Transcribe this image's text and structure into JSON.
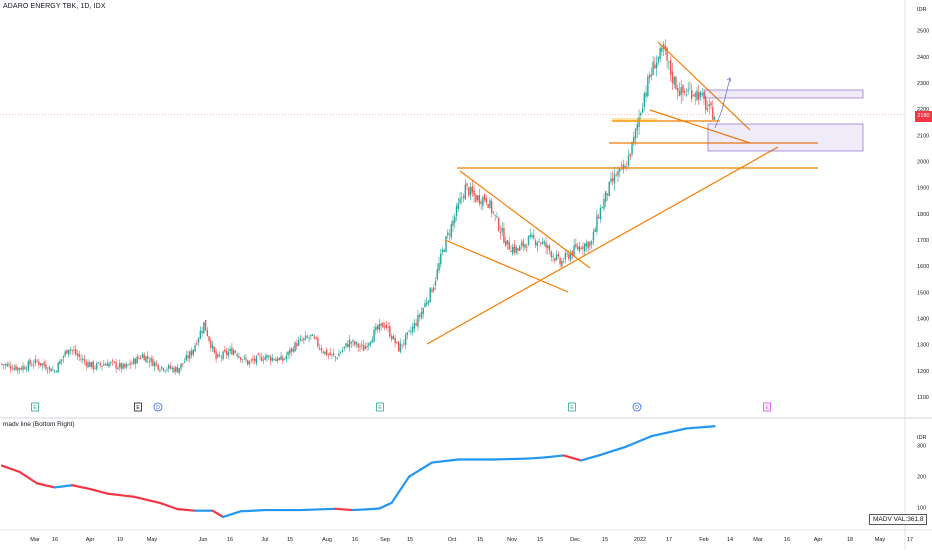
{
  "header": {
    "symbol_title": "ADARO ENERGY TBK, 1D, IDX"
  },
  "indicator": {
    "title": "madv line (Bottom Right)",
    "value_label": "MADV VAL:361.8"
  },
  "colors": {
    "up": "#26a69a",
    "down": "#ef5350",
    "pattern": "#f57c00",
    "madv_up": "#2196f3",
    "madv_down": "#f23645",
    "zone": "#7e57c2"
  },
  "last_price": {
    "label": "2180",
    "value": 2180
  },
  "chart_data": [
    {
      "type": "candlestick",
      "title": "ADARO ENERGY TBK, 1D, IDX",
      "currency_label": "IDR",
      "ylim": [
        1050,
        2560
      ],
      "y_ticks": [
        1100,
        1200,
        1300,
        1400,
        1500,
        1600,
        1700,
        1800,
        1900,
        2000,
        2100,
        2200,
        2300,
        2400,
        2500
      ],
      "x_ticks": [
        "Mar",
        "16",
        "Apr",
        "19",
        "May",
        "Jun",
        "16",
        "Jul",
        "15",
        "Aug",
        "16",
        "Sep",
        "15",
        "Oct",
        "15",
        "Nov",
        "15",
        "Dec",
        "15",
        "2022",
        "17",
        "Feb",
        "14",
        "Mar",
        "16",
        "Apr",
        "18",
        "May",
        "17"
      ],
      "close_path": [
        [
          0,
          1225
        ],
        [
          10,
          1210
        ],
        [
          20,
          1235
        ],
        [
          30,
          1200
        ],
        [
          38,
          1290
        ],
        [
          45,
          1245
        ],
        [
          52,
          1215
        ],
        [
          60,
          1230
        ],
        [
          70,
          1210
        ],
        [
          80,
          1260
        ],
        [
          90,
          1215
        ],
        [
          100,
          1205
        ],
        [
          108,
          1270
        ],
        [
          115,
          1380
        ],
        [
          122,
          1245
        ],
        [
          132,
          1280
        ],
        [
          140,
          1230
        ],
        [
          150,
          1255
        ],
        [
          160,
          1240
        ],
        [
          168,
          1305
        ],
        [
          176,
          1330
        ],
        [
          184,
          1270
        ],
        [
          190,
          1250
        ],
        [
          198,
          1310
        ],
        [
          206,
          1285
        ],
        [
          212,
          1345
        ],
        [
          218,
          1380
        ],
        [
          226,
          1285
        ],
        [
          232,
          1340
        ],
        [
          238,
          1410
        ],
        [
          246,
          1530
        ],
        [
          252,
          1680
        ],
        [
          258,
          1790
        ],
        [
          264,
          1900
        ],
        [
          270,
          1860
        ],
        [
          276,
          1860
        ],
        [
          282,
          1770
        ],
        [
          288,
          1680
        ],
        [
          294,
          1660
        ],
        [
          300,
          1700
        ],
        [
          306,
          1700
        ],
        [
          312,
          1660
        ],
        [
          318,
          1610
        ],
        [
          324,
          1650
        ],
        [
          330,
          1680
        ],
        [
          336,
          1690
        ],
        [
          340,
          1800
        ],
        [
          346,
          1900
        ],
        [
          350,
          1950
        ],
        [
          355,
          1970
        ],
        [
          360,
          2080
        ],
        [
          366,
          2260
        ],
        [
          372,
          2380
        ],
        [
          377,
          2420
        ],
        [
          382,
          2320
        ],
        [
          387,
          2260
        ],
        [
          392,
          2270
        ],
        [
          397,
          2260
        ],
        [
          402,
          2200
        ],
        [
          406,
          2180
        ]
      ],
      "markers": [
        {
          "label": "E",
          "style": "earnings"
        },
        {
          "label": "E",
          "style": "earnings-outline"
        },
        {
          "label": "D",
          "style": "dividend"
        },
        {
          "label": "E",
          "style": "earnings"
        },
        {
          "label": "E",
          "style": "earnings"
        },
        {
          "label": "D",
          "style": "dividend"
        },
        {
          "label": "E",
          "style": "earnings-future"
        }
      ]
    },
    {
      "type": "line",
      "title": "madv line (Bottom Right)",
      "ylim": [
        60,
        350
      ],
      "y_ticks": [
        100,
        200,
        300
      ],
      "values_path": [
        [
          0,
          235
        ],
        [
          10,
          215
        ],
        [
          20,
          178
        ],
        [
          30,
          165
        ],
        [
          40,
          172
        ],
        [
          50,
          160
        ],
        [
          60,
          145
        ],
        [
          75,
          135
        ],
        [
          90,
          115
        ],
        [
          100,
          95
        ],
        [
          110,
          90
        ],
        [
          120,
          90
        ],
        [
          126,
          70
        ],
        [
          136,
          88
        ],
        [
          150,
          92
        ],
        [
          170,
          92
        ],
        [
          190,
          96
        ],
        [
          200,
          92
        ],
        [
          210,
          95
        ],
        [
          215,
          97
        ],
        [
          222,
          115
        ],
        [
          232,
          200
        ],
        [
          245,
          245
        ],
        [
          260,
          255
        ],
        [
          280,
          255
        ],
        [
          300,
          258
        ],
        [
          310,
          262
        ],
        [
          320,
          268
        ],
        [
          330,
          252
        ],
        [
          340,
          268
        ],
        [
          355,
          295
        ],
        [
          370,
          330
        ],
        [
          390,
          355
        ],
        [
          406,
          362
        ]
      ]
    }
  ]
}
